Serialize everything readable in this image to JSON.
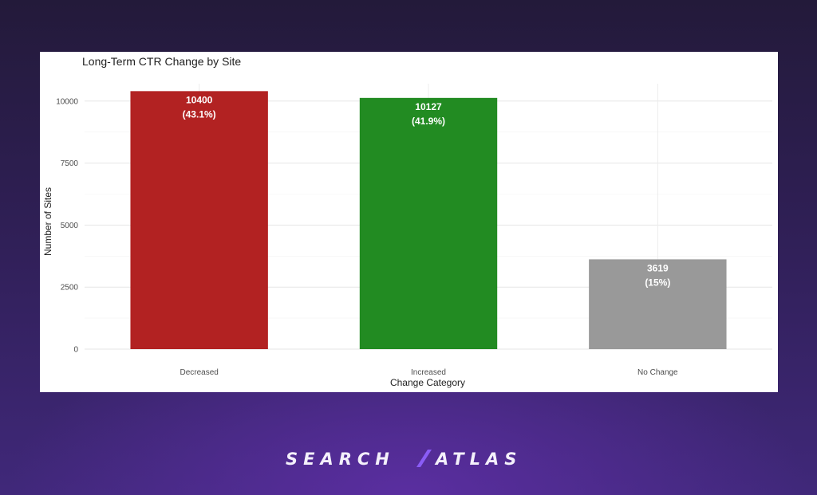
{
  "chart_data": {
    "type": "bar",
    "title": "Long-Term CTR Change by Site",
    "xlabel": "Change Category",
    "ylabel": "Number of Sites",
    "categories": [
      "Decreased",
      "Increased",
      "No Change"
    ],
    "values": [
      10400,
      10127,
      3619
    ],
    "bar_labels": [
      {
        "count": "10400",
        "percent": "(43.1%)"
      },
      {
        "count": "10127",
        "percent": "(41.9%)"
      },
      {
        "count": "3619",
        "percent": "(15%)"
      }
    ],
    "colors": [
      "#b22222",
      "#228b22",
      "#999999"
    ],
    "yticks": [
      0,
      2500,
      5000,
      7500,
      10000
    ],
    "ytick_labels": [
      "0",
      "2500",
      "5000",
      "7500",
      "10000"
    ],
    "ylim": [
      0,
      10700
    ],
    "grid": true,
    "legend": "none"
  },
  "brand": {
    "left": "SEARCH",
    "right": "ATLAS",
    "accent": "#8a5cf6"
  }
}
